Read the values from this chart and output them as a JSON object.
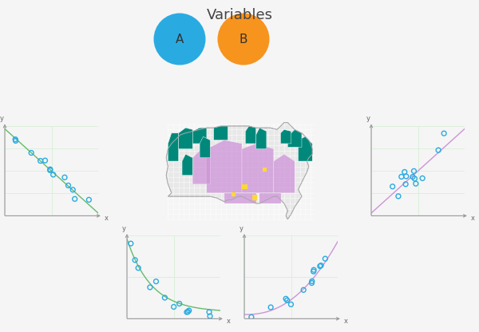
{
  "title": "Variables",
  "title_fontsize": 13,
  "bg_color": "#f5f5f5",
  "circle_A_color": "#29ABE2",
  "circle_B_color": "#F7941D",
  "circle_A_label": "A",
  "circle_B_label": "B",
  "scatter_color": "#29ABE2",
  "line_neg_color": "#66BB6A",
  "line_pos_color": "#CE93D8",
  "map_teal": "#00897B",
  "map_pink": "#CE93D8",
  "map_light": "#E8E8E8",
  "map_yellow": "#FDD835",
  "grid_color": "#c8e6c9",
  "axis_color": "#999999",
  "label_color": "#666666"
}
